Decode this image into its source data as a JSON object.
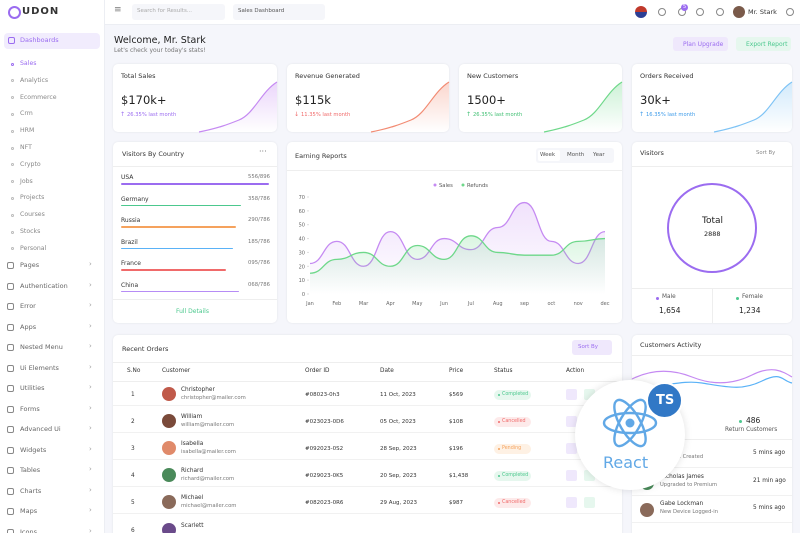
{
  "sidebar": {
    "logo": "UDON",
    "section": "Dashboards",
    "sub": [
      "Sales",
      "Analytics",
      "Ecommerce",
      "Crm",
      "HRM",
      "NFT",
      "Crypto",
      "Jobs",
      "Projects",
      "Courses",
      "Stocks",
      "Personal"
    ],
    "items": [
      "Pages",
      "Authentication",
      "Error",
      "Apps",
      "Nested Menu",
      "Ui Elements",
      "Utilities",
      "Forms",
      "Advanced Ui",
      "Widgets",
      "Tables",
      "Charts",
      "Maps",
      "Icons"
    ]
  },
  "header": {
    "search": "Search for Results...",
    "dropdown": "Sales Dashboard",
    "badge": "5",
    "user": "Mr. Stark"
  },
  "welcome": {
    "title": "Welcome, Mr. Stark",
    "subtitle": "Let's check your today's stats!",
    "buttons": [
      "Plan Upgrade",
      "Export Report"
    ]
  },
  "stats": [
    {
      "title": "Total Sales",
      "value": "$170k+",
      "change": "26.35% last month"
    },
    {
      "title": "Revenue Generated",
      "value": "$115k",
      "change": "11.35% last month"
    },
    {
      "title": "New Customers",
      "value": "1500+",
      "change": "26.35% last month"
    },
    {
      "title": "Orders Received",
      "value": "30k+",
      "change": "16.35% last month"
    }
  ],
  "countries": {
    "title": "Visitors By Country",
    "rows": [
      [
        "USA",
        "556/896"
      ],
      [
        "Germany",
        "358/786"
      ],
      [
        "Russia",
        "290/786"
      ],
      [
        "Brazil",
        "185/786"
      ],
      [
        "France",
        "095/786"
      ],
      [
        "China",
        "068/786"
      ]
    ],
    "footer": "Full Details"
  },
  "earning_reports": {
    "title": "Earning Reports",
    "tabs": [
      "Week",
      "Month",
      "Year"
    ],
    "chart": {
      "type": "line",
      "categories": [
        "Jan",
        "Feb",
        "Mar",
        "Apr",
        "May",
        "Jun",
        "Jul",
        "Aug",
        "sep",
        "oct",
        "nov",
        "dec"
      ],
      "series": [
        {
          "name": "Sales",
          "color": "#c58af2",
          "values": [
            22,
            38,
            20,
            45,
            25,
            40,
            32,
            48,
            66,
            38,
            22,
            45
          ]
        },
        {
          "name": "Refunds",
          "color": "#6ed88a",
          "values": [
            15,
            25,
            30,
            20,
            35,
            25,
            42,
            30,
            28,
            28,
            38,
            40
          ]
        }
      ],
      "ylim": [
        0,
        70
      ],
      "yticks": [
        0,
        10,
        20,
        30,
        40,
        50,
        60,
        70
      ]
    }
  },
  "visitors": {
    "title": "Visitors",
    "sort": "Sort By",
    "center_label": "Total",
    "total": "2888",
    "male_label": "Male",
    "male": "1,654",
    "female_label": "Female",
    "female": "1,234"
  },
  "orders": {
    "title": "Recent Orders",
    "sort": "Sort By",
    "columns": [
      "S.No",
      "Customer",
      "Order ID",
      "Date",
      "Price",
      "Status",
      "Action"
    ],
    "rows": [
      [
        "1",
        "Christopher",
        "christopher@mailer.com",
        "#08023-0h3",
        "11 Oct, 2023",
        "$569",
        "Completed"
      ],
      [
        "2",
        "William",
        "william@mailer.com",
        "#023023-0D6",
        "05 Oct, 2023",
        "$108",
        "Cancelled"
      ],
      [
        "3",
        "Isabella",
        "isabella@mailer.com",
        "#092023-0S2",
        "28 Sep, 2023",
        "$196",
        "Pending"
      ],
      [
        "4",
        "Richard",
        "richard@mailer.com",
        "#029023-0K5",
        "20 Sep, 2023",
        "$1,438",
        "Completed"
      ],
      [
        "5",
        "Michael",
        "michael@mailer.com",
        "#082023-0R6",
        "29 Aug, 2023",
        "$987",
        "Cancelled"
      ]
    ],
    "last_row": [
      "6",
      "Scarlett"
    ]
  },
  "activity": {
    "title": "Customers Activity",
    "return_value": "486",
    "return_label": "Return Customers",
    "items": [
      [
        "Account Created",
        "5 mins ago"
      ],
      [
        "Nicholas James",
        "Upgraded to Premium",
        "21 min ago"
      ],
      [
        "Gabe Lockman",
        "New Device Logged-in",
        "5 mins ago"
      ]
    ]
  },
  "badge": {
    "react": "React",
    "ts": "TS"
  }
}
